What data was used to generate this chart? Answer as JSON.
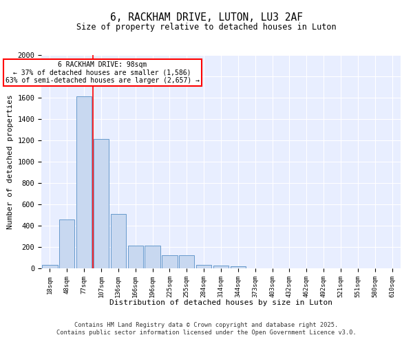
{
  "title1": "6, RACKHAM DRIVE, LUTON, LU3 2AF",
  "title2": "Size of property relative to detached houses in Luton",
  "xlabel": "Distribution of detached houses by size in Luton",
  "ylabel": "Number of detached properties",
  "categories": [
    "18sqm",
    "48sqm",
    "77sqm",
    "107sqm",
    "136sqm",
    "166sqm",
    "196sqm",
    "225sqm",
    "255sqm",
    "284sqm",
    "314sqm",
    "344sqm",
    "373sqm",
    "403sqm",
    "432sqm",
    "462sqm",
    "492sqm",
    "521sqm",
    "551sqm",
    "580sqm",
    "610sqm"
  ],
  "values": [
    30,
    460,
    1610,
    1210,
    510,
    215,
    215,
    125,
    125,
    35,
    25,
    20,
    0,
    0,
    0,
    0,
    0,
    0,
    0,
    0,
    0
  ],
  "bar_color": "#c8d8f0",
  "bar_edge_color": "#6699cc",
  "vline_x_idx": 3,
  "vline_color": "red",
  "annotation_text": "6 RACKHAM DRIVE: 98sqm\n← 37% of detached houses are smaller (1,586)\n63% of semi-detached houses are larger (2,657) →",
  "annotation_box_color": "white",
  "annotation_box_edge": "red",
  "ylim": [
    0,
    2000
  ],
  "yticks": [
    0,
    200,
    400,
    600,
    800,
    1000,
    1200,
    1400,
    1600,
    1800,
    2000
  ],
  "bg_color": "#e8eeff",
  "grid_color": "white",
  "footer1": "Contains HM Land Registry data © Crown copyright and database right 2025.",
  "footer2": "Contains public sector information licensed under the Open Government Licence v3.0."
}
